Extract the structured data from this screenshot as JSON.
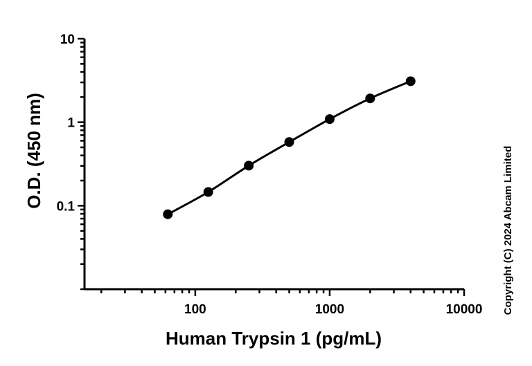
{
  "chart_data": {
    "type": "line",
    "title": "",
    "xlabel": "Human Trypsin 1 (pg/mL)",
    "ylabel": "O.D. (450 nm)",
    "x_scale": "log",
    "y_scale": "log",
    "xlim": [
      15,
      10000
    ],
    "ylim": [
      0.01,
      10
    ],
    "x_ticks": [
      100,
      1000,
      10000
    ],
    "x_tick_labels": [
      "100",
      "1000",
      "10000"
    ],
    "y_ticks": [
      0.1,
      1,
      10
    ],
    "y_tick_labels": [
      "0.1",
      "1",
      "10"
    ],
    "grid": false,
    "legend": "none",
    "series": [
      {
        "x": [
          62.5,
          125,
          250,
          500,
          1000,
          2000,
          4000
        ],
        "y": [
          0.079,
          0.146,
          0.302,
          0.579,
          1.09,
          1.93,
          3.1
        ]
      }
    ],
    "colors": {
      "line": "#000000",
      "marker": "#000000",
      "axis": "#000000"
    },
    "annotations": [
      "Copyright (C) 2024 Abcam Limited"
    ]
  }
}
